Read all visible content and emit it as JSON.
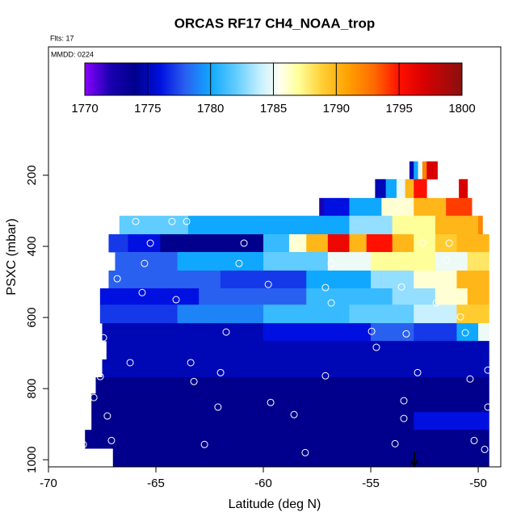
{
  "chart_data": {
    "type": "heatmap",
    "title": "ORCAS RF17 CH4_NOAA_trop",
    "note_top": "Flts: 17",
    "note_inside": "MMDD: 0224",
    "x_label": "Latitude (deg N)",
    "y_label": "PSXC (mbar)",
    "xlim": [
      -70,
      -48.95
    ],
    "xticks": [
      -70,
      -65,
      -60,
      -55,
      -50
    ],
    "ylim": [
      1020,
      -161
    ],
    "yticks": [
      200,
      400,
      600,
      800,
      1000
    ],
    "colorbar": {
      "lim": [
        1770,
        1800
      ],
      "ticks": [
        1770,
        1775,
        1780,
        1785,
        1790,
        1795,
        1800
      ]
    },
    "colorscale": [
      [
        1770,
        "#8a00ff"
      ],
      [
        1772,
        "#1a00b0"
      ],
      [
        1774,
        "#00008c"
      ],
      [
        1776,
        "#0010e0"
      ],
      [
        1778,
        "#2a60f0"
      ],
      [
        1780,
        "#10a8ff"
      ],
      [
        1782,
        "#60ccff"
      ],
      [
        1784,
        "#c8f0ff"
      ],
      [
        1785.5,
        "#fffff0"
      ],
      [
        1787,
        "#ffff99"
      ],
      [
        1789,
        "#ffcc30"
      ],
      [
        1791,
        "#ffa000"
      ],
      [
        1793,
        "#ff6a00"
      ],
      [
        1795,
        "#ff1000"
      ],
      [
        1797,
        "#d80000"
      ],
      [
        1800,
        "#8a1010"
      ]
    ],
    "bands": [
      {
        "p": [
          161,
          211
        ],
        "cells": [
          [
            -53.2,
            -53.0,
            1775
          ],
          [
            -53.0,
            -52.8,
            1780
          ],
          [
            -52.8,
            -52.6,
            1785
          ],
          [
            -52.6,
            -52.4,
            1792
          ],
          [
            -52.4,
            -51.9,
            1797
          ]
        ]
      },
      {
        "p": [
          211,
          264
        ],
        "cells": [
          [
            -54.8,
            -54.3,
            1775
          ],
          [
            -54.3,
            -53.8,
            1780
          ],
          [
            -53.8,
            -53.4,
            1785
          ],
          [
            -53.4,
            -53.0,
            1790
          ],
          [
            -53.0,
            -52.4,
            1795
          ],
          [
            -50.9,
            -50.5,
            1797
          ]
        ]
      },
      {
        "p": [
          264,
          314
        ],
        "cells": [
          [
            -57.4,
            -57.2,
            1772
          ],
          [
            -57.2,
            -56.0,
            1776
          ],
          [
            -56.0,
            -54.5,
            1780
          ],
          [
            -54.5,
            -53.0,
            1786
          ],
          [
            -53.0,
            -51.5,
            1790
          ],
          [
            -51.5,
            -50.3,
            1794
          ]
        ]
      },
      {
        "p": [
          314,
          366
        ],
        "cells": [
          [
            -66.7,
            -63.5,
            1782
          ],
          [
            -63.5,
            -56.0,
            1780
          ],
          [
            -56.0,
            -54.0,
            1783
          ],
          [
            -54.0,
            -52.0,
            1787
          ],
          [
            -52.0,
            -50.0,
            1790
          ],
          [
            -50.0,
            -49.8,
            1792
          ]
        ]
      },
      {
        "p": [
          366,
          416
        ],
        "cells": [
          [
            -67.2,
            -66.3,
            1777
          ],
          [
            -66.3,
            -64.8,
            1776
          ],
          [
            -64.8,
            -60.0,
            1774
          ],
          [
            -60.0,
            -58.8,
            1781
          ],
          [
            -58.8,
            -58.0,
            1786
          ],
          [
            -58.0,
            -57.0,
            1790
          ],
          [
            -57.0,
            -56.0,
            1796
          ],
          [
            -56.0,
            -55.2,
            1790
          ],
          [
            -55.2,
            -54.0,
            1795
          ],
          [
            -54.0,
            -53.0,
            1790
          ],
          [
            -53.0,
            -52.0,
            1787
          ],
          [
            -52.0,
            -51.0,
            1789
          ],
          [
            -51.0,
            -49.5,
            1790
          ]
        ]
      },
      {
        "p": [
          416,
          468
        ],
        "cells": [
          [
            -66.9,
            -64.0,
            1778
          ],
          [
            -64.0,
            -60.0,
            1780
          ],
          [
            -60.0,
            -57.0,
            1782
          ],
          [
            -57.0,
            -55.0,
            1785
          ],
          [
            -55.0,
            -52.0,
            1787
          ],
          [
            -52.0,
            -50.5,
            1785
          ],
          [
            -50.5,
            -49.5,
            1788
          ]
        ]
      },
      {
        "p": [
          468,
          518
        ],
        "cells": [
          [
            -67.2,
            -62.0,
            1778
          ],
          [
            -62.0,
            -58.0,
            1777
          ],
          [
            -58.0,
            -55.0,
            1780
          ],
          [
            -55.0,
            -53.0,
            1783
          ],
          [
            -53.0,
            -51.0,
            1786
          ],
          [
            -51.0,
            -49.5,
            1790
          ]
        ]
      },
      {
        "p": [
          518,
          564
        ],
        "cells": [
          [
            -67.6,
            -63.0,
            1776
          ],
          [
            -63.0,
            -58.0,
            1778
          ],
          [
            -58.0,
            -54.0,
            1781
          ],
          [
            -54.0,
            -52.0,
            1783
          ],
          [
            -52.0,
            -50.5,
            1786
          ],
          [
            -50.5,
            -49.5,
            1790
          ]
        ]
      },
      {
        "p": [
          564,
          616
        ],
        "cells": [
          [
            -67.6,
            -64.0,
            1777
          ],
          [
            -64.0,
            -60.0,
            1779
          ],
          [
            -60.0,
            -56.0,
            1781
          ],
          [
            -56.0,
            -53.0,
            1782
          ],
          [
            -53.0,
            -51.0,
            1784
          ],
          [
            -51.0,
            -49.5,
            1789
          ]
        ]
      },
      {
        "p": [
          616,
          666
        ],
        "cells": [
          [
            -67.5,
            -60.0,
            1775
          ],
          [
            -60.0,
            -55.0,
            1776
          ],
          [
            -55.0,
            -53.0,
            1778
          ],
          [
            -53.0,
            -51.0,
            1777
          ],
          [
            -51.0,
            -50.0,
            1780
          ],
          [
            -50.0,
            -49.5,
            1785
          ]
        ]
      },
      {
        "p": [
          666,
          718
        ],
        "cells": [
          [
            -67.3,
            -49.5,
            1775
          ]
        ]
      },
      {
        "p": [
          718,
          768
        ],
        "cells": [
          [
            -67.5,
            -49.5,
            1775
          ]
        ]
      },
      {
        "p": [
          768,
          814
        ],
        "cells": [
          [
            -67.8,
            -49.5,
            1774
          ]
        ]
      },
      {
        "p": [
          814,
          866
        ],
        "cells": [
          [
            -68.0,
            -49.5,
            1774
          ]
        ]
      },
      {
        "p": [
          866,
          916
        ],
        "cells": [
          [
            -68.0,
            -53.0,
            1774
          ],
          [
            -53.0,
            -49.5,
            1776
          ]
        ]
      },
      {
        "p": [
          916,
          968
        ],
        "cells": [
          [
            -68.3,
            -49.5,
            1774
          ]
        ]
      },
      {
        "p": [
          968,
          1020
        ],
        "cells": [
          [
            -67.0,
            -49.5,
            1774
          ]
        ]
      }
    ],
    "points": [
      [
        -51.69,
        195
      ],
      [
        -50.64,
        195
      ],
      [
        -65.94,
        330
      ],
      [
        -64.25,
        330
      ],
      [
        -63.57,
        330
      ],
      [
        -65.26,
        391
      ],
      [
        -60.9,
        391
      ],
      [
        -52.59,
        391
      ],
      [
        -51.35,
        391
      ],
      [
        -65.53,
        448
      ],
      [
        -61.13,
        448
      ],
      [
        -56.84,
        448
      ],
      [
        -51.47,
        439
      ],
      [
        -66.8,
        491
      ],
      [
        -59.77,
        507
      ],
      [
        -57.11,
        516
      ],
      [
        -53.57,
        514
      ],
      [
        -65.64,
        530
      ],
      [
        -64.06,
        550
      ],
      [
        -56.84,
        559
      ],
      [
        -51.95,
        559
      ],
      [
        -50.83,
        598
      ],
      [
        -67.44,
        657
      ],
      [
        -61.73,
        641
      ],
      [
        -54.96,
        639
      ],
      [
        -53.35,
        646
      ],
      [
        -50.6,
        643
      ],
      [
        -66.2,
        727
      ],
      [
        -63.38,
        727
      ],
      [
        -54.74,
        684
      ],
      [
        -49.55,
        748
      ],
      [
        -67.59,
        766
      ],
      [
        -61.99,
        755
      ],
      [
        -57.11,
        764
      ],
      [
        -52.82,
        755
      ],
      [
        -63.23,
        780
      ],
      [
        -50.38,
        773
      ],
      [
        -67.89,
        825
      ],
      [
        -59.66,
        839
      ],
      [
        -53.46,
        834
      ],
      [
        -62.11,
        852
      ],
      [
        -58.57,
        873
      ],
      [
        -49.55,
        852
      ],
      [
        -67.26,
        877
      ],
      [
        -53.46,
        884
      ],
      [
        -68.38,
        957
      ],
      [
        -67.07,
        946
      ],
      [
        -62.74,
        957
      ],
      [
        -58.05,
        980
      ],
      [
        -53.87,
        955
      ],
      [
        -50.19,
        946
      ],
      [
        -49.7,
        971
      ]
    ]
  }
}
